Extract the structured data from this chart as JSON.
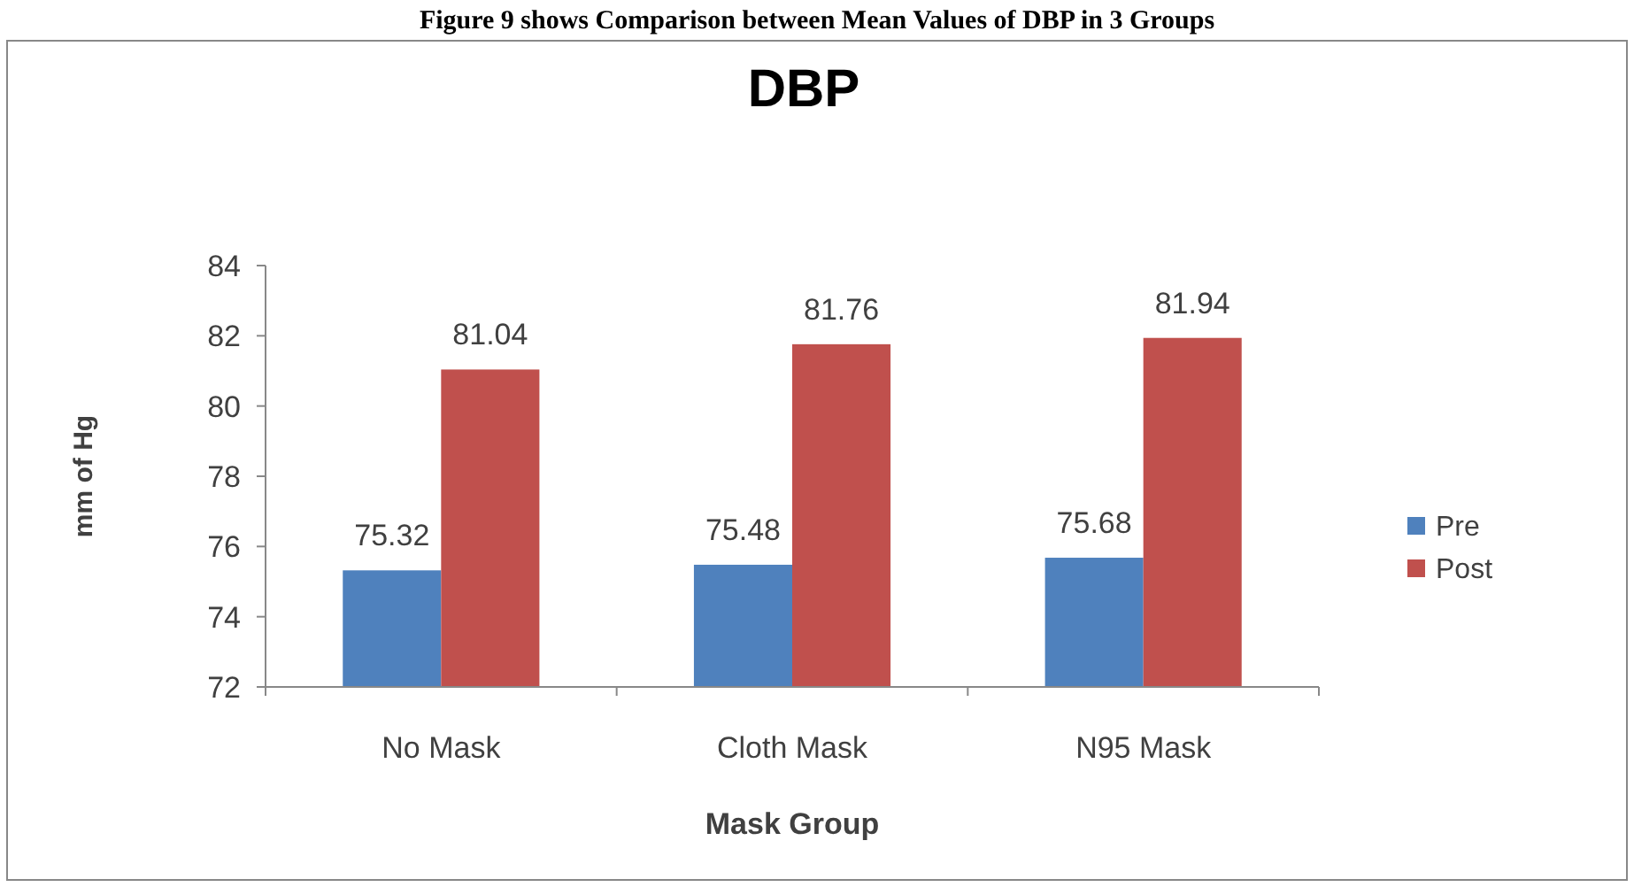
{
  "chart_data": {
    "type": "bar",
    "title": "DBP",
    "xlabel": "Mask Group",
    "ylabel": "mm of Hg",
    "annotations": [
      "Figure 9 shows Comparison between Mean Values of DBP in 3 Groups"
    ],
    "categories": [
      "No Mask",
      "Cloth Mask",
      "N95 Mask"
    ],
    "series": [
      {
        "name": "Pre",
        "color": "#4f81bd",
        "values": [
          75.32,
          75.48,
          75.68
        ]
      },
      {
        "name": "Post",
        "color": "#c0504d",
        "values": [
          81.04,
          81.76,
          81.94
        ]
      }
    ],
    "ylim": [
      72,
      84
    ],
    "yticks": [
      72,
      74,
      76,
      78,
      80,
      82,
      84
    ],
    "data_labels": true,
    "legend": "right",
    "grid": false
  }
}
